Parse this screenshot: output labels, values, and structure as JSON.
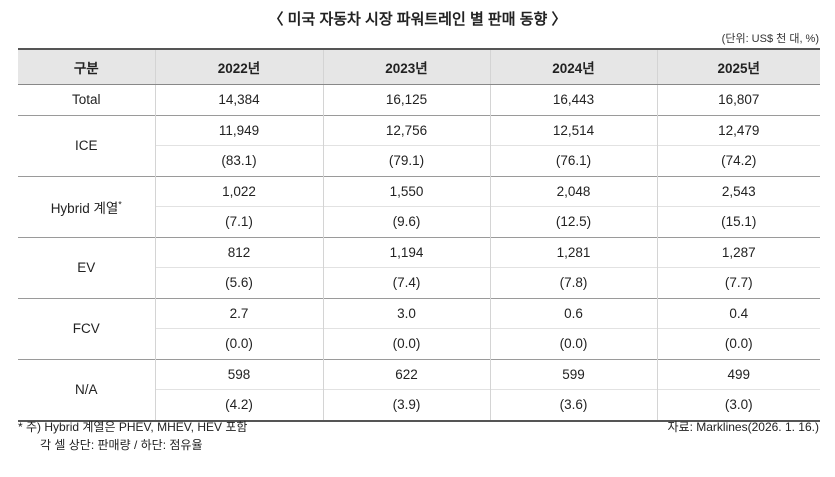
{
  "title": "〈 미국 자동차 시장 파워트레인 별 판매 동향 〉",
  "unit": "(단위: US$ 천 대, %)",
  "table": {
    "header": [
      "구분",
      "2022년",
      "2023년",
      "2024년",
      "2025년"
    ],
    "rows": [
      {
        "label": "Total",
        "values": [
          "14,384",
          "16,125",
          "16,443",
          "16,807"
        ]
      },
      {
        "label": "ICE",
        "values": [
          "11,949",
          "12,756",
          "12,514",
          "12,479"
        ],
        "shares": [
          "(83.1)",
          "(79.1)",
          "(76.1)",
          "(74.2)"
        ]
      },
      {
        "label": "Hybrid 계열",
        "note_mark": "*",
        "values": [
          "1,022",
          "1,550",
          "2,048",
          "2,543"
        ],
        "shares": [
          "(7.1)",
          "(9.6)",
          "(12.5)",
          "(15.1)"
        ]
      },
      {
        "label": "EV",
        "values": [
          "812",
          "1,194",
          "1,281",
          "1,287"
        ],
        "shares": [
          "(5.6)",
          "(7.4)",
          "(7.8)",
          "(7.7)"
        ]
      },
      {
        "label": "FCV",
        "values": [
          "2.7",
          "3.0",
          "0.6",
          "0.4"
        ],
        "shares": [
          "(0.0)",
          "(0.0)",
          "(0.0)",
          "(0.0)"
        ]
      },
      {
        "label": "N/A",
        "values": [
          "598",
          "622",
          "599",
          "499"
        ],
        "shares": [
          "(4.2)",
          "(3.9)",
          "(3.6)",
          "(3.0)"
        ]
      }
    ]
  },
  "footnotes": [
    "* 주) Hybrid 계열은 PHEV, MHEV, HEV 포함",
    "각 셀 상단: 판매량 / 하단: 점유율"
  ],
  "source": "자료: Marklines(2026. 1. 16.)"
}
